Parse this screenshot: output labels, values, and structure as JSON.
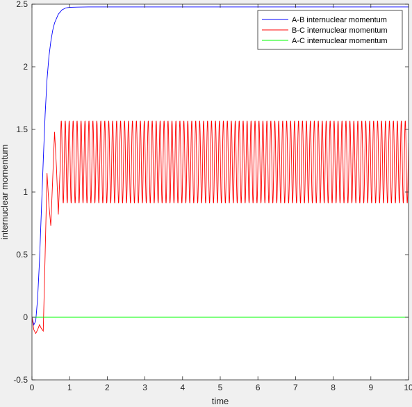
{
  "chart_data": {
    "type": "line",
    "title": "",
    "xlabel": "time",
    "ylabel": "internuclear momentum",
    "xlim": [
      0,
      10
    ],
    "ylim": [
      -0.5,
      2.5
    ],
    "xticks": [
      "0",
      "1",
      "2",
      "3",
      "4",
      "5",
      "6",
      "7",
      "8",
      "9",
      "10"
    ],
    "yticks": [
      "-0.5",
      "0",
      "0.5",
      "1",
      "1.5",
      "2",
      "2.5"
    ],
    "grid": false,
    "legend_position": "top-right",
    "series": [
      {
        "name": "A-B internuclear momentum",
        "color": "#0000ff",
        "x": [
          0,
          0.05,
          0.1,
          0.15,
          0.2,
          0.25,
          0.3,
          0.35,
          0.4,
          0.45,
          0.5,
          0.55,
          0.6,
          0.7,
          0.8,
          0.9,
          1.0,
          1.2,
          1.5,
          2,
          3,
          4,
          5,
          6,
          7,
          8,
          9,
          10
        ],
        "y": [
          0,
          -0.06,
          -0.03,
          0.15,
          0.45,
          0.85,
          1.25,
          1.62,
          1.9,
          2.08,
          2.2,
          2.29,
          2.35,
          2.42,
          2.455,
          2.47,
          2.475,
          2.477,
          2.478,
          2.478,
          2.478,
          2.478,
          2.478,
          2.478,
          2.478,
          2.478,
          2.478,
          2.478
        ]
      },
      {
        "name": "B-C internuclear momentum",
        "color": "#ff0000",
        "x": [
          0,
          0.05,
          0.1,
          0.15,
          0.2,
          0.25,
          0.3,
          0.35,
          0.4,
          0.45,
          0.5,
          0.55,
          0.6,
          0.65,
          0.7,
          0.75
        ],
        "y": [
          0,
          -0.1,
          -0.13,
          -0.1,
          -0.06,
          -0.09,
          -0.11,
          0.5,
          1.15,
          0.9,
          0.73,
          1.1,
          1.48,
          1.2,
          0.82,
          1.2
        ],
        "oscillation": {
          "start_x": 0.75,
          "end_x": 10,
          "max": 1.57,
          "min": 0.91,
          "period": 0.105
        }
      },
      {
        "name": "A-C internuclear momentum",
        "color": "#00ff00",
        "x": [
          0,
          10
        ],
        "y": [
          0,
          0
        ]
      }
    ]
  }
}
